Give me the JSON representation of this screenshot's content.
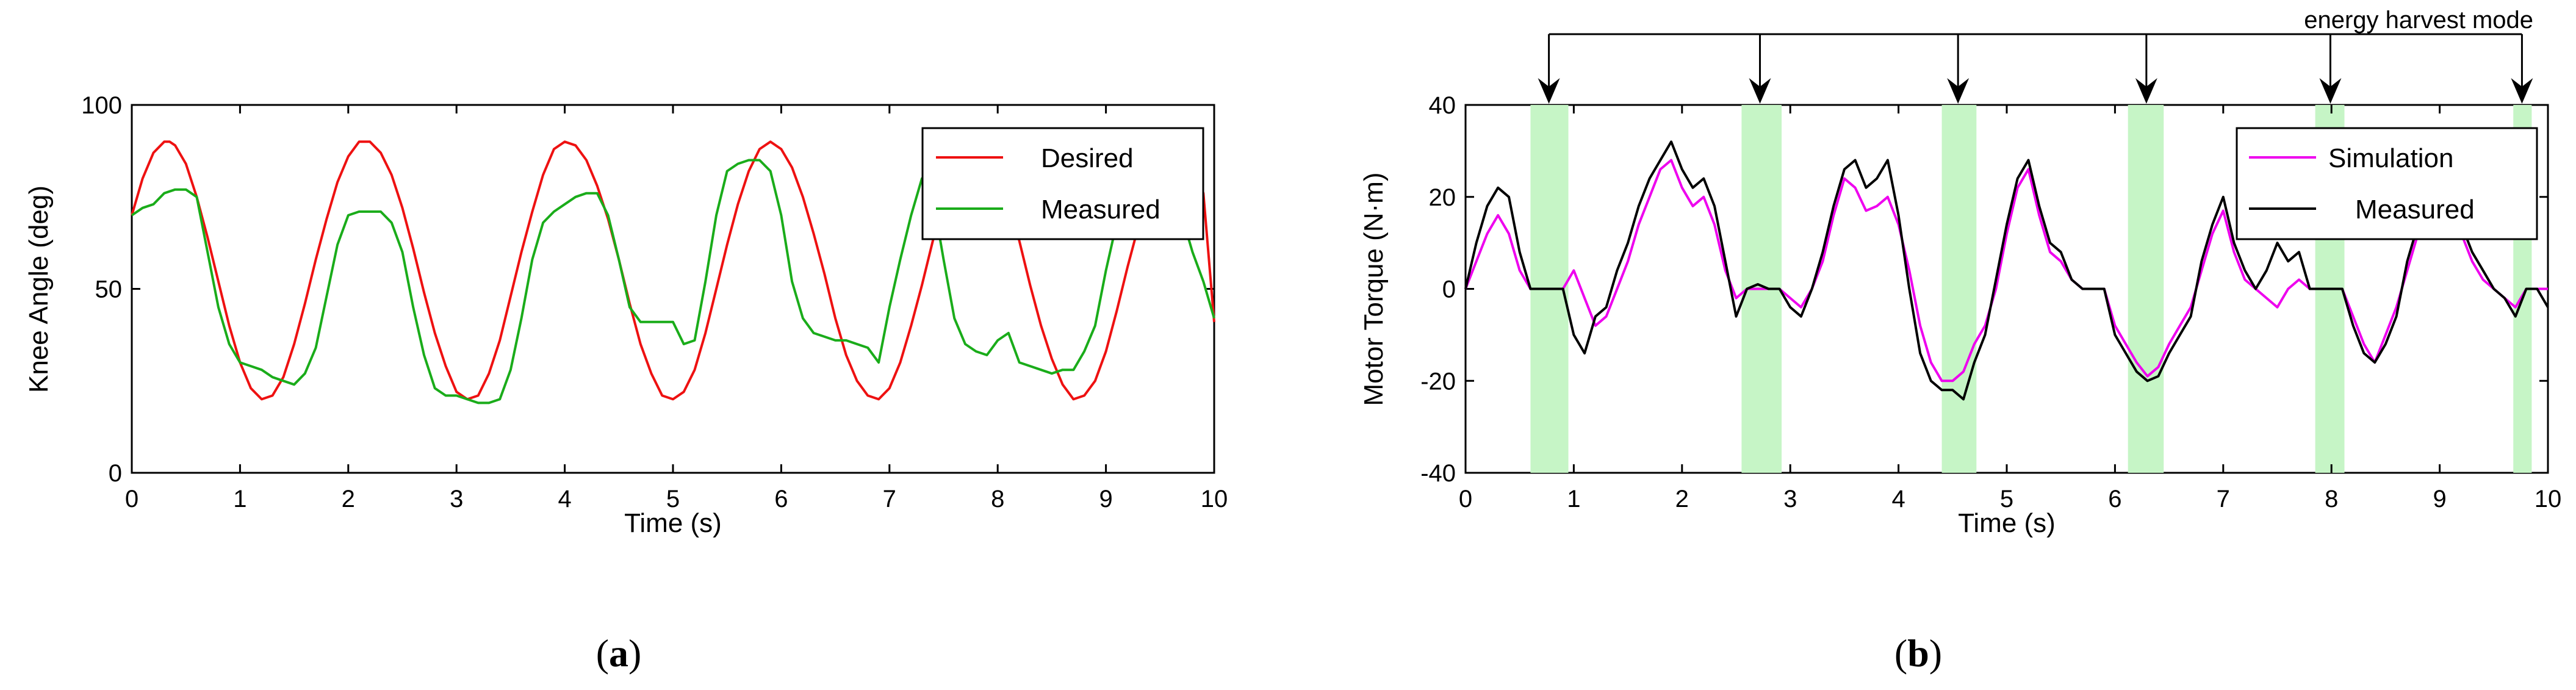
{
  "chart_data": [
    {
      "id": "a",
      "type": "line",
      "caption": "a",
      "xlabel": "Time (s)",
      "ylabel": "Knee Angle (deg)",
      "xlim": [
        0,
        10
      ],
      "ylim": [
        0,
        100
      ],
      "xticks": [
        0,
        1,
        2,
        3,
        4,
        5,
        6,
        7,
        8,
        9,
        10
      ],
      "yticks": [
        0,
        50,
        100
      ],
      "legend_position": "top-right",
      "series": [
        {
          "name": "Desired",
          "color": "#ee1111",
          "x": [
            0,
            0.1,
            0.2,
            0.3,
            0.35,
            0.4,
            0.5,
            0.6,
            0.7,
            0.8,
            0.9,
            1.0,
            1.1,
            1.2,
            1.3,
            1.4,
            1.5,
            1.6,
            1.7,
            1.8,
            1.9,
            2.0,
            2.1,
            2.2,
            2.3,
            2.4,
            2.5,
            2.6,
            2.7,
            2.8,
            2.9,
            3.0,
            3.1,
            3.2,
            3.3,
            3.4,
            3.5,
            3.6,
            3.7,
            3.8,
            3.9,
            4.0,
            4.1,
            4.2,
            4.3,
            4.4,
            4.5,
            4.6,
            4.7,
            4.8,
            4.9,
            5.0,
            5.1,
            5.2,
            5.3,
            5.4,
            5.5,
            5.6,
            5.7,
            5.8,
            5.9,
            6.0,
            6.1,
            6.2,
            6.3,
            6.4,
            6.5,
            6.6,
            6.7,
            6.8,
            6.9,
            7.0,
            7.1,
            7.2,
            7.3,
            7.4,
            7.5,
            7.6,
            7.7,
            7.8,
            7.9,
            8.0,
            8.1,
            8.2,
            8.3,
            8.4,
            8.5,
            8.6,
            8.7,
            8.8,
            8.9,
            9.0,
            9.1,
            9.2,
            9.3,
            9.4,
            9.5,
            9.6,
            9.7,
            9.8,
            9.9,
            10.0
          ],
          "y": [
            70,
            80,
            87,
            90,
            90,
            89,
            84,
            75,
            64,
            52,
            40,
            30,
            23,
            20,
            21,
            26,
            35,
            46,
            58,
            69,
            79,
            86,
            90,
            90,
            87,
            81,
            72,
            61,
            49,
            38,
            29,
            22,
            20,
            21,
            27,
            36,
            48,
            60,
            71,
            81,
            88,
            90,
            89,
            85,
            78,
            69,
            58,
            46,
            35,
            27,
            21,
            20,
            22,
            28,
            38,
            50,
            62,
            73,
            82,
            88,
            90,
            88,
            83,
            75,
            65,
            54,
            42,
            32,
            25,
            21,
            20,
            23,
            30,
            40,
            51,
            63,
            74,
            83,
            89,
            90,
            88,
            83,
            74,
            63,
            51,
            40,
            31,
            24,
            20,
            21,
            25,
            33,
            44,
            56,
            67,
            77,
            85,
            90,
            89,
            84,
            76,
            41
          ]
        },
        {
          "name": "Measured",
          "color": "#1aac1a",
          "x": [
            0,
            0.1,
            0.2,
            0.3,
            0.4,
            0.5,
            0.6,
            0.7,
            0.8,
            0.9,
            1.0,
            1.1,
            1.2,
            1.3,
            1.4,
            1.5,
            1.6,
            1.7,
            1.8,
            1.9,
            2.0,
            2.1,
            2.2,
            2.3,
            2.4,
            2.5,
            2.6,
            2.7,
            2.8,
            2.9,
            3.0,
            3.1,
            3.2,
            3.3,
            3.4,
            3.5,
            3.6,
            3.7,
            3.8,
            3.9,
            4.0,
            4.1,
            4.2,
            4.3,
            4.4,
            4.5,
            4.6,
            4.7,
            4.8,
            4.9,
            5.0,
            5.1,
            5.2,
            5.3,
            5.4,
            5.5,
            5.6,
            5.7,
            5.8,
            5.9,
            6.0,
            6.1,
            6.2,
            6.3,
            6.4,
            6.5,
            6.6,
            6.7,
            6.8,
            6.9,
            7.0,
            7.1,
            7.2,
            7.3,
            7.4,
            7.5,
            7.6,
            7.7,
            7.8,
            7.9,
            8.0,
            8.1,
            8.2,
            8.3,
            8.4,
            8.5,
            8.6,
            8.7,
            8.8,
            8.9,
            9.0,
            9.1,
            9.2,
            9.3,
            9.4,
            9.5,
            9.6,
            9.7,
            9.8,
            9.9,
            10.0
          ],
          "y": [
            70,
            72,
            73,
            76,
            77,
            77,
            75,
            60,
            45,
            35,
            30,
            29,
            28,
            26,
            25,
            24,
            27,
            34,
            48,
            62,
            70,
            71,
            71,
            71,
            68,
            60,
            45,
            32,
            23,
            21,
            21,
            20,
            19,
            19,
            20,
            28,
            42,
            58,
            68,
            71,
            73,
            75,
            76,
            76,
            70,
            58,
            45,
            41,
            41,
            41,
            41,
            35,
            36,
            52,
            70,
            82,
            84,
            85,
            85,
            82,
            70,
            52,
            42,
            38,
            37,
            36,
            36,
            35,
            34,
            30,
            45,
            58,
            70,
            80,
            75,
            58,
            42,
            35,
            33,
            32,
            36,
            38,
            30,
            29,
            28,
            27,
            28,
            28,
            33,
            40,
            55,
            68,
            78,
            82,
            82,
            80,
            75,
            70,
            60,
            52,
            42
          ]
        }
      ]
    },
    {
      "id": "b",
      "type": "line",
      "caption": "b",
      "xlabel": "Time (s)",
      "ylabel": "Motor Torque (N·m)",
      "xlim": [
        0,
        10
      ],
      "ylim": [
        -40,
        40
      ],
      "xticks": [
        0,
        1,
        2,
        3,
        4,
        5,
        6,
        7,
        8,
        9,
        10
      ],
      "yticks": [
        -40,
        -20,
        0,
        20,
        40
      ],
      "legend_position": "top-right",
      "annotation": "energy harvest mode",
      "harvest_windows": [
        [
          0.6,
          0.95
        ],
        [
          2.55,
          2.92
        ],
        [
          4.4,
          4.72
        ],
        [
          6.12,
          6.45
        ],
        [
          7.85,
          8.12
        ],
        [
          9.68,
          9.85
        ]
      ],
      "harvest_arrows_x": [
        0.77,
        2.72,
        4.55,
        6.29,
        7.99,
        9.76
      ],
      "series": [
        {
          "name": "Simulation",
          "color": "#ee00ee",
          "x": [
            0,
            0.1,
            0.2,
            0.3,
            0.4,
            0.5,
            0.6,
            0.7,
            0.8,
            0.9,
            1.0,
            1.1,
            1.2,
            1.3,
            1.4,
            1.5,
            1.6,
            1.7,
            1.8,
            1.9,
            2.0,
            2.1,
            2.2,
            2.3,
            2.4,
            2.5,
            2.6,
            2.7,
            2.8,
            2.9,
            3.0,
            3.1,
            3.2,
            3.3,
            3.4,
            3.5,
            3.6,
            3.7,
            3.8,
            3.9,
            4.0,
            4.1,
            4.2,
            4.3,
            4.4,
            4.5,
            4.6,
            4.7,
            4.8,
            4.9,
            5.0,
            5.1,
            5.2,
            5.3,
            5.4,
            5.5,
            5.6,
            5.7,
            5.8,
            5.9,
            6.0,
            6.1,
            6.2,
            6.3,
            6.4,
            6.5,
            6.6,
            6.7,
            6.8,
            6.9,
            7.0,
            7.1,
            7.2,
            7.3,
            7.4,
            7.5,
            7.6,
            7.7,
            7.8,
            7.9,
            8.0,
            8.1,
            8.2,
            8.3,
            8.4,
            8.5,
            8.6,
            8.7,
            8.8,
            8.9,
            9.0,
            9.1,
            9.2,
            9.3,
            9.4,
            9.5,
            9.6,
            9.7,
            9.8,
            9.9,
            10.0
          ],
          "y": [
            0,
            6,
            12,
            16,
            12,
            4,
            0,
            0,
            0,
            0,
            4,
            -2,
            -8,
            -6,
            0,
            6,
            14,
            20,
            26,
            28,
            22,
            18,
            20,
            14,
            4,
            -2,
            0,
            0,
            0,
            0,
            -2,
            -4,
            0,
            6,
            16,
            24,
            22,
            17,
            18,
            20,
            14,
            4,
            -8,
            -16,
            -20,
            -20,
            -18,
            -12,
            -8,
            0,
            12,
            22,
            26,
            16,
            8,
            6,
            2,
            0,
            0,
            0,
            -8,
            -12,
            -16,
            -19,
            -17,
            -12,
            -8,
            -4,
            4,
            12,
            17,
            8,
            2,
            0,
            -2,
            -4,
            0,
            2,
            0,
            0,
            0,
            0,
            -6,
            -12,
            -16,
            -10,
            -4,
            4,
            12,
            14,
            16,
            14,
            12,
            6,
            2,
            0,
            -2,
            -4,
            0,
            0,
            0
          ]
        },
        {
          "name": "Measured",
          "color": "#000000",
          "x": [
            0,
            0.1,
            0.2,
            0.3,
            0.4,
            0.5,
            0.6,
            0.7,
            0.8,
            0.9,
            1.0,
            1.1,
            1.2,
            1.3,
            1.4,
            1.5,
            1.6,
            1.7,
            1.8,
            1.9,
            2.0,
            2.1,
            2.2,
            2.3,
            2.4,
            2.5,
            2.6,
            2.7,
            2.8,
            2.9,
            3.0,
            3.1,
            3.2,
            3.3,
            3.4,
            3.5,
            3.6,
            3.7,
            3.8,
            3.9,
            4.0,
            4.1,
            4.2,
            4.3,
            4.4,
            4.5,
            4.6,
            4.7,
            4.8,
            4.9,
            5.0,
            5.1,
            5.2,
            5.3,
            5.4,
            5.5,
            5.6,
            5.7,
            5.8,
            5.9,
            6.0,
            6.1,
            6.2,
            6.3,
            6.4,
            6.5,
            6.6,
            6.7,
            6.8,
            6.9,
            7.0,
            7.1,
            7.2,
            7.3,
            7.4,
            7.5,
            7.6,
            7.7,
            7.8,
            7.9,
            8.0,
            8.1,
            8.2,
            8.3,
            8.4,
            8.5,
            8.6,
            8.7,
            8.8,
            8.9,
            9.0,
            9.1,
            9.2,
            9.3,
            9.4,
            9.5,
            9.6,
            9.7,
            9.8,
            9.9,
            10.0
          ],
          "y": [
            0,
            10,
            18,
            22,
            20,
            8,
            0,
            0,
            0,
            0,
            -10,
            -14,
            -6,
            -4,
            4,
            10,
            18,
            24,
            28,
            32,
            26,
            22,
            24,
            18,
            6,
            -6,
            0,
            1,
            0,
            0,
            -4,
            -6,
            0,
            8,
            18,
            26,
            28,
            22,
            24,
            28,
            16,
            0,
            -14,
            -20,
            -22,
            -22,
            -24,
            -16,
            -10,
            2,
            14,
            24,
            28,
            18,
            10,
            8,
            2,
            0,
            0,
            0,
            -10,
            -14,
            -18,
            -20,
            -19,
            -14,
            -10,
            -6,
            6,
            14,
            20,
            10,
            4,
            0,
            4,
            10,
            6,
            8,
            0,
            0,
            0,
            0,
            -8,
            -14,
            -16,
            -12,
            -6,
            6,
            14,
            18,
            20,
            16,
            14,
            8,
            4,
            0,
            -2,
            -6,
            0,
            0,
            -4
          ]
        }
      ]
    }
  ]
}
